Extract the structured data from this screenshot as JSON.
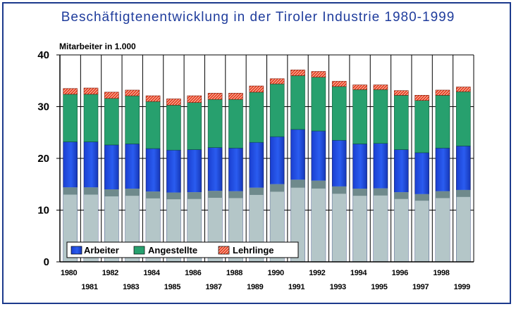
{
  "chart_data": {
    "type": "bar",
    "stacked": true,
    "title": "Beschäftigtenentwicklung in der Tiroler Industrie 1980-1999",
    "unit_label": "Mitarbeiter in 1.000",
    "xlabel": "",
    "ylabel": "",
    "ylim": [
      0,
      40
    ],
    "yticks": [
      0,
      10,
      20,
      30,
      40
    ],
    "grid": true,
    "legend_position": "bottom-left",
    "categories": [
      "1980",
      "1981",
      "1982",
      "1983",
      "1984",
      "1985",
      "1986",
      "1987",
      "1988",
      "1989",
      "1990",
      "1991",
      "1992",
      "1993",
      "1994",
      "1995",
      "1996",
      "1997",
      "1998",
      "1999"
    ],
    "series": [
      {
        "name": "Arbeiter",
        "color": "#1a4fe0",
        "values": [
          23.2,
          23.2,
          22.6,
          22.8,
          21.9,
          21.6,
          21.7,
          22.1,
          22.0,
          23.1,
          24.2,
          25.6,
          25.3,
          23.5,
          22.8,
          22.9,
          21.7,
          21.1,
          22.0,
          22.4
        ]
      },
      {
        "name": "Angestellte",
        "color": "#27a06e",
        "values": [
          9.2,
          9.2,
          9.0,
          9.3,
          9.1,
          8.7,
          9.1,
          9.3,
          9.4,
          9.7,
          10.2,
          10.4,
          10.4,
          10.4,
          10.5,
          10.4,
          10.5,
          10.1,
          10.2,
          10.5
        ]
      },
      {
        "name": "Lehrlinge",
        "color": "#e83a1c",
        "values": [
          1.1,
          1.2,
          1.2,
          1.1,
          1.1,
          1.2,
          1.3,
          1.2,
          1.2,
          1.2,
          1.0,
          1.1,
          1.1,
          1.0,
          0.9,
          0.9,
          0.9,
          1.0,
          1.0,
          0.9
        ]
      }
    ]
  }
}
